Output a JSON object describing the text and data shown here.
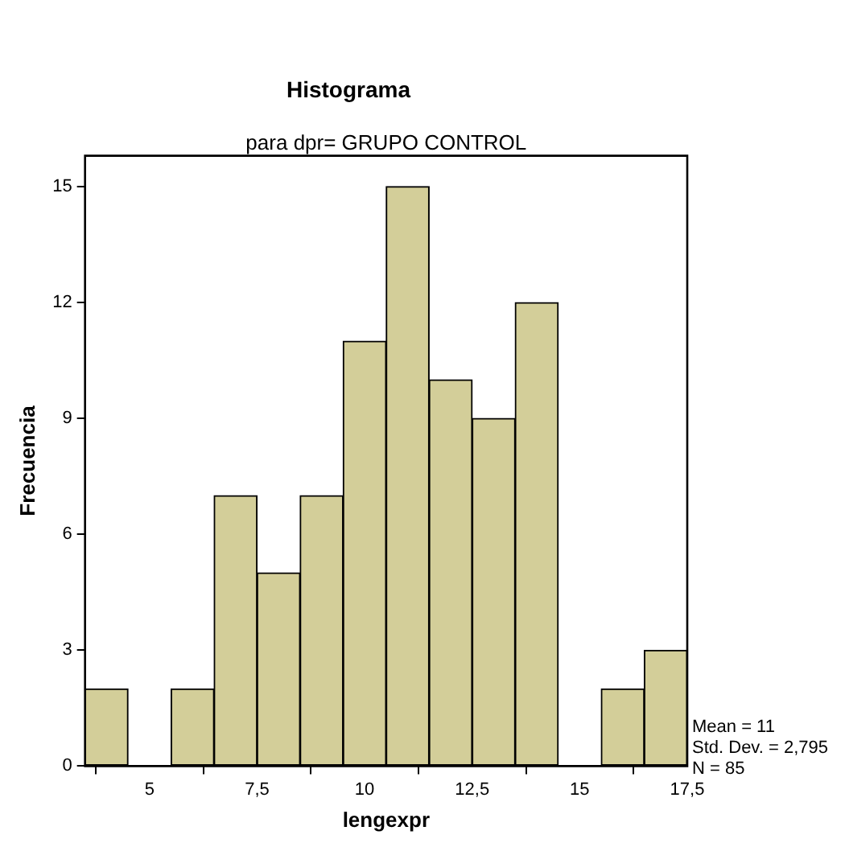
{
  "chart_data": {
    "type": "histogram",
    "title": "Histograma",
    "subtitle": "para dpr= GRUPO CONTROL",
    "xlabel": "lengexpr",
    "ylabel": "Frecuencia",
    "bins": [
      3.5,
      4.5,
      5.5,
      6.5,
      7.5,
      8.5,
      9.5,
      10.5,
      11.5,
      12.5,
      13.5,
      14.5,
      15.5,
      16.5,
      17.5
    ],
    "values": [
      2,
      0,
      2,
      7,
      5,
      7,
      11,
      15,
      10,
      9,
      12,
      0,
      2,
      3
    ],
    "color": "#d3ce99",
    "xlim": [
      3.5,
      17.5
    ],
    "xticks": [
      5,
      {
        "value": 7.5,
        "label": "7,5"
      },
      10,
      {
        "value": 12.5,
        "label": "12,5"
      },
      15,
      {
        "value": 17.5,
        "label": "17,5"
      }
    ],
    "ylim": [
      0,
      15.8
    ],
    "yticks": [
      0,
      3,
      6,
      9,
      12,
      15
    ],
    "annotations": [
      "Mean = 11",
      "Std. Dev. = 2,795",
      "N = 85"
    ],
    "legend": false
  }
}
